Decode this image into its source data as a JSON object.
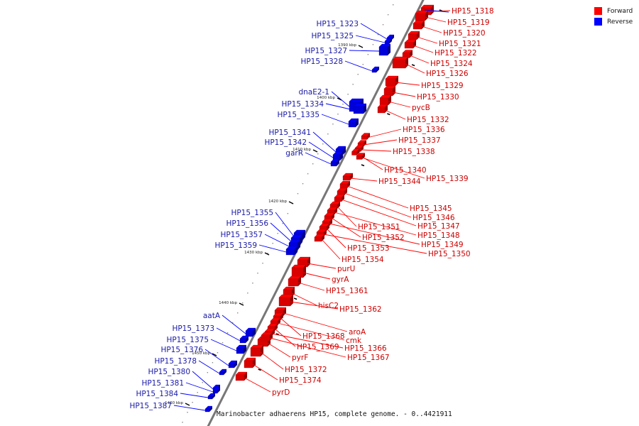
{
  "caption": "Marinobacter adhaerens HP15, complete genome. - 0..4421911",
  "legend": [
    {
      "label": "Forward",
      "color": "#ff0000"
    },
    {
      "label": "Reverse",
      "color": "#0000ff"
    }
  ],
  "colors": {
    "forward": "#ff0000",
    "reverse": "#0000ff",
    "backbone": "#777777"
  },
  "kbp_ticks": [
    "1390 kbp",
    "1400 kbp",
    "1410 kbp",
    "1420 kbp",
    "1430 kbp",
    "1440 kbp",
    "1450 kbp",
    "1460 kbp"
  ],
  "forward_genes": [
    "HP15_1318",
    "HP15_1319",
    "HP15_1320",
    "HP15_1321",
    "HP15_1322",
    "HP15_1324",
    "HP15_1326",
    "HP15_1329",
    "HP15_1330",
    "pycB",
    "HP15_1332",
    "HP15_1336",
    "HP15_1337",
    "HP15_1338",
    "HP15_1340",
    "HP15_1339",
    "HP15_1344",
    "HP15_1345",
    "HP15_1346",
    "HP15_1347",
    "HP15_1351",
    "HP15_1348",
    "HP15_1352",
    "HP15_1349",
    "HP15_1353",
    "HP15_1350",
    "HP15_1354",
    "purU",
    "gyrA",
    "HP15_1361",
    "hisC2",
    "HP15_1362",
    "aroA",
    "HP15_1368",
    "cmk",
    "HP15_1369",
    "HP15_1366",
    "pyrF",
    "HP15_1367",
    "HP15_1372",
    "HP15_1374",
    "pyrD"
  ],
  "reverse_genes": [
    "HP15_1323",
    "HP15_1325",
    "HP15_1327",
    "HP15_1328",
    "dnaE2-1",
    "HP15_1334",
    "HP15_1335",
    "HP15_1341",
    "HP15_1342",
    "garR",
    "HP15_1355",
    "HP15_1356",
    "HP15_1357",
    "HP15_1359",
    "aatA",
    "HP15_1373",
    "HP15_1375",
    "HP15_1376",
    "HP15_1378",
    "HP15_1380",
    "HP15_1381",
    "HP15_1384",
    "HP15_1387"
  ]
}
